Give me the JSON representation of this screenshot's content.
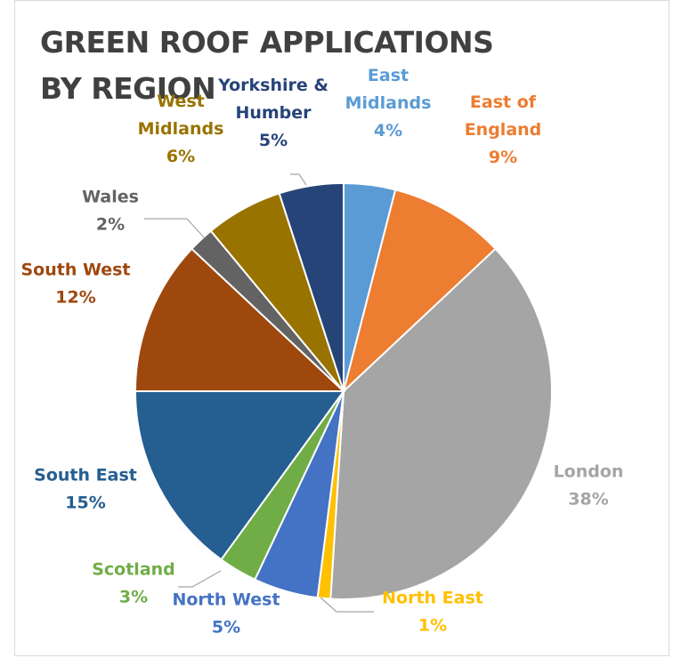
{
  "chart_data": {
    "type": "pie",
    "title_lines": [
      "GREEN ROOF APPLICATIONS",
      "BY REGION"
    ],
    "start_angle_deg": 0,
    "direction": "clockwise",
    "slices": [
      {
        "label_lines": [
          "East",
          "Midlands"
        ],
        "value": 4,
        "value_label": "4%",
        "color": "#5b9bd5"
      },
      {
        "label_lines": [
          "East of",
          "England"
        ],
        "value": 9,
        "value_label": "9%",
        "color": "#ed7d31"
      },
      {
        "label_lines": [
          "London"
        ],
        "value": 38,
        "value_label": "38%",
        "color": "#a5a5a5"
      },
      {
        "label_lines": [
          "North East"
        ],
        "value": 1,
        "value_label": "1%",
        "color": "#ffc000"
      },
      {
        "label_lines": [
          "North West"
        ],
        "value": 5,
        "value_label": "5%",
        "color": "#4472c4"
      },
      {
        "label_lines": [
          "Scotland"
        ],
        "value": 3,
        "value_label": "3%",
        "color": "#70ad47"
      },
      {
        "label_lines": [
          "South East"
        ],
        "value": 15,
        "value_label": "15%",
        "color": "#255e91"
      },
      {
        "label_lines": [
          "South West"
        ],
        "value": 12,
        "value_label": "12%",
        "color": "#9e480e"
      },
      {
        "label_lines": [
          "Wales"
        ],
        "value": 2,
        "value_label": "2%",
        "color": "#636363"
      },
      {
        "label_lines": [
          "West",
          "Midlands"
        ],
        "value": 6,
        "value_label": "6%",
        "color": "#997300"
      },
      {
        "label_lines": [
          "Yorkshire &",
          "Humber"
        ],
        "value": 5,
        "value_label": "5%",
        "color": "#264478"
      }
    ],
    "legend": "none"
  }
}
